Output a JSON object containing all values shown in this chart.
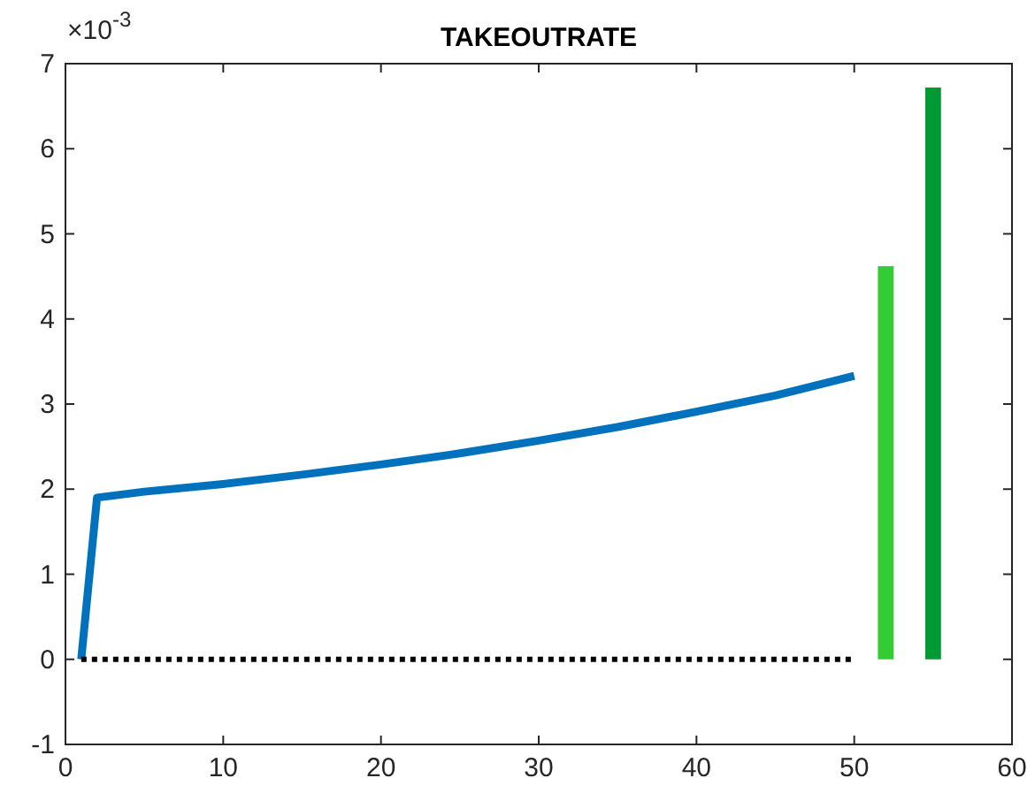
{
  "chart_data": {
    "type": "line",
    "title": "TAKEOUTRATE",
    "annotations": [
      "×10$^{-3}$"
    ],
    "xlim": [
      0,
      60
    ],
    "xticks": [
      0,
      10,
      20,
      30,
      40,
      50,
      60
    ],
    "ylim": [
      -1,
      7
    ],
    "yticks": [
      -1,
      0,
      1,
      2,
      3,
      4,
      5,
      6,
      7
    ],
    "grid": false,
    "series": [
      {
        "color": "#0072bd",
        "line_style": "solid",
        "x": [
          1,
          2,
          5,
          10,
          15,
          20,
          25,
          30,
          35,
          40,
          45,
          50
        ],
        "values": [
          0,
          1.9,
          1.97,
          2.06,
          2.17,
          2.29,
          2.42,
          2.57,
          2.73,
          2.91,
          3.1,
          3.33
        ]
      },
      {
        "color": "#000000",
        "line_style": "dotted",
        "x": [
          1,
          50
        ],
        "values": [
          0,
          0
        ]
      },
      {
        "type": "bar",
        "color": "#33cc33",
        "x": [
          52
        ],
        "values": [
          4.62
        ]
      },
      {
        "type": "bar",
        "color": "#009933",
        "x": [
          55
        ],
        "values": [
          6.72
        ]
      }
    ]
  }
}
